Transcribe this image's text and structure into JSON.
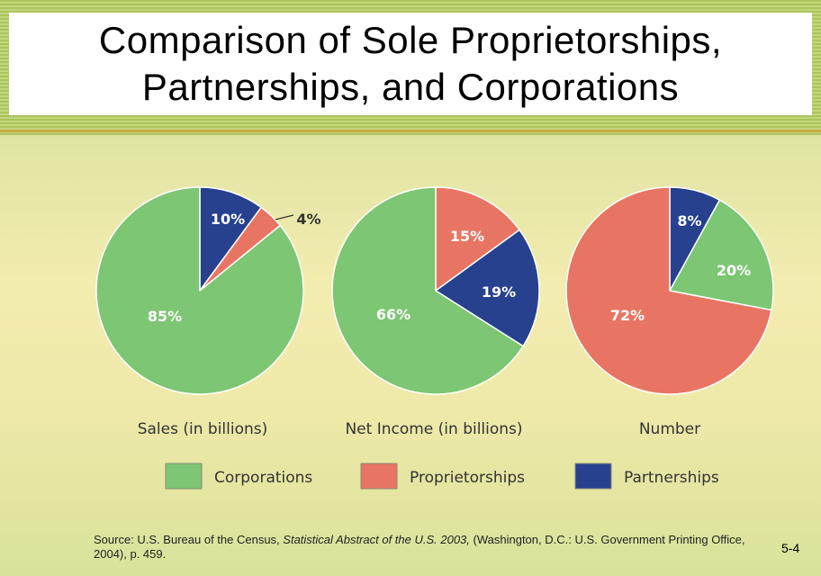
{
  "slide": {
    "title_line1": "Comparison of Sole Proprietorships,",
    "title_line2": "Partnerships, and Corporations",
    "source_prefix": "Source: U.S. Bureau of the Census, ",
    "source_title": "Statistical Abstract of the U.S. 2003,",
    "source_suffix": " (Washington, D.C.: U.S. Government Printing Office, 2004), p. 459.",
    "slide_number": "5-4"
  },
  "colors": {
    "corporations": "#7dc673",
    "proprietorships": "#e87563",
    "partnerships": "#27418f"
  },
  "chart_data": [
    {
      "type": "pie",
      "title": "Sales (in billions)",
      "slices": [
        {
          "name": "Partnerships",
          "value": 10,
          "label": "10%"
        },
        {
          "name": "Proprietorships",
          "value": 4,
          "label": "4%"
        },
        {
          "name": "Corporations",
          "value": 85,
          "label": "85%"
        }
      ]
    },
    {
      "type": "pie",
      "title": "Net Income (in billions)",
      "slices": [
        {
          "name": "Proprietorships",
          "value": 15,
          "label": "15%"
        },
        {
          "name": "Partnerships",
          "value": 19,
          "label": "19%"
        },
        {
          "name": "Corporations",
          "value": 66,
          "label": "66%"
        }
      ]
    },
    {
      "type": "pie",
      "title": "Number",
      "slices": [
        {
          "name": "Partnerships",
          "value": 8,
          "label": "8%"
        },
        {
          "name": "Corporations",
          "value": 20,
          "label": "20%"
        },
        {
          "name": "Proprietorships",
          "value": 72,
          "label": "72%"
        }
      ]
    }
  ],
  "legend": {
    "items": [
      {
        "name": "Corporations",
        "label": "Corporations"
      },
      {
        "name": "Proprietorships",
        "label": "Proprietorships"
      },
      {
        "name": "Partnerships",
        "label": "Partnerships"
      }
    ]
  }
}
